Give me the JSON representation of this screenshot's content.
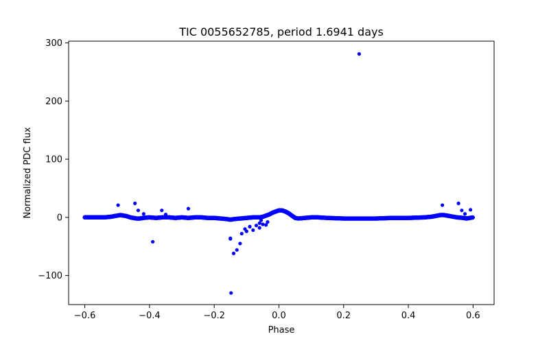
{
  "chart_data": {
    "type": "scatter",
    "title": "TIC 0055652785, period 1.6941 days",
    "xlabel": "Phase",
    "ylabel": "Normalized PDC flux",
    "xlim": [
      -0.65,
      0.665
    ],
    "ylim": [
      -150,
      303
    ],
    "x_ticks": [
      -0.6,
      -0.4,
      -0.2,
      0.0,
      0.2,
      0.4,
      0.6
    ],
    "x_tick_labels": [
      "−0.6",
      "−0.4",
      "−0.2",
      "0.0",
      "0.2",
      "0.4",
      "0.6"
    ],
    "y_ticks": [
      -100,
      0,
      100,
      200,
      300
    ],
    "y_tick_labels": [
      "−100",
      "0",
      "100",
      "200",
      "300"
    ],
    "grid": false,
    "marker_color": "#0000ff",
    "series": [
      {
        "name": "flux",
        "x": [
          -0.6,
          -0.58,
          -0.56,
          -0.54,
          -0.52,
          -0.51,
          -0.5,
          -0.49,
          -0.48,
          -0.47,
          -0.46,
          -0.45,
          -0.44,
          -0.43,
          -0.42,
          -0.4,
          -0.38,
          -0.36,
          -0.34,
          -0.32,
          -0.3,
          -0.28,
          -0.26,
          -0.24,
          -0.22,
          -0.2,
          -0.18,
          -0.16,
          -0.15,
          -0.14,
          -0.12,
          -0.1,
          -0.08,
          -0.06,
          -0.05,
          -0.04,
          -0.03,
          -0.02,
          -0.01,
          0.0,
          0.01,
          0.02,
          0.03,
          0.04,
          0.05,
          0.06,
          0.08,
          0.1,
          0.12,
          0.15,
          0.2,
          0.25,
          0.3,
          0.35,
          0.4,
          0.45,
          0.47,
          0.49,
          0.5,
          0.51,
          0.52,
          0.53,
          0.55,
          0.57,
          0.58,
          0.59,
          0.6,
          -0.497,
          -0.445,
          -0.435,
          -0.418,
          -0.39,
          -0.362,
          -0.35,
          -0.28,
          -0.15,
          -0.148,
          -0.14,
          -0.13,
          -0.12,
          -0.115,
          -0.105,
          -0.1,
          -0.09,
          -0.08,
          -0.07,
          -0.06,
          -0.05,
          -0.04,
          -0.035,
          0.248,
          0.505,
          0.555,
          0.565,
          0.575,
          0.592,
          -0.15,
          -0.09,
          -0.06,
          -0.055
        ],
        "y": [
          0,
          0,
          0,
          0,
          1,
          2,
          3,
          4,
          3,
          2,
          0,
          -1,
          -2,
          -2,
          -1,
          0,
          -1,
          0,
          0,
          -1,
          0,
          -1,
          0,
          0,
          -1,
          -1,
          -2,
          -3,
          -4,
          -3,
          -2,
          -1,
          0,
          0,
          1,
          3,
          5,
          8,
          10,
          12,
          12,
          10,
          7,
          3,
          -1,
          -2,
          -1,
          0,
          0,
          -1,
          -2,
          -2,
          -2,
          -1,
          -1,
          0,
          1,
          3,
          4,
          4,
          3,
          2,
          0,
          -1,
          -2,
          -1,
          0,
          21,
          24,
          12,
          6,
          -42,
          12,
          5,
          15,
          -37,
          -130,
          -62,
          -56,
          -45,
          -28,
          -20,
          -24,
          -16,
          -22,
          -14,
          -18,
          -12,
          -13,
          -8,
          281,
          21,
          24,
          12,
          6,
          13,
          -36,
          -16,
          -10,
          -5
        ]
      }
    ]
  }
}
